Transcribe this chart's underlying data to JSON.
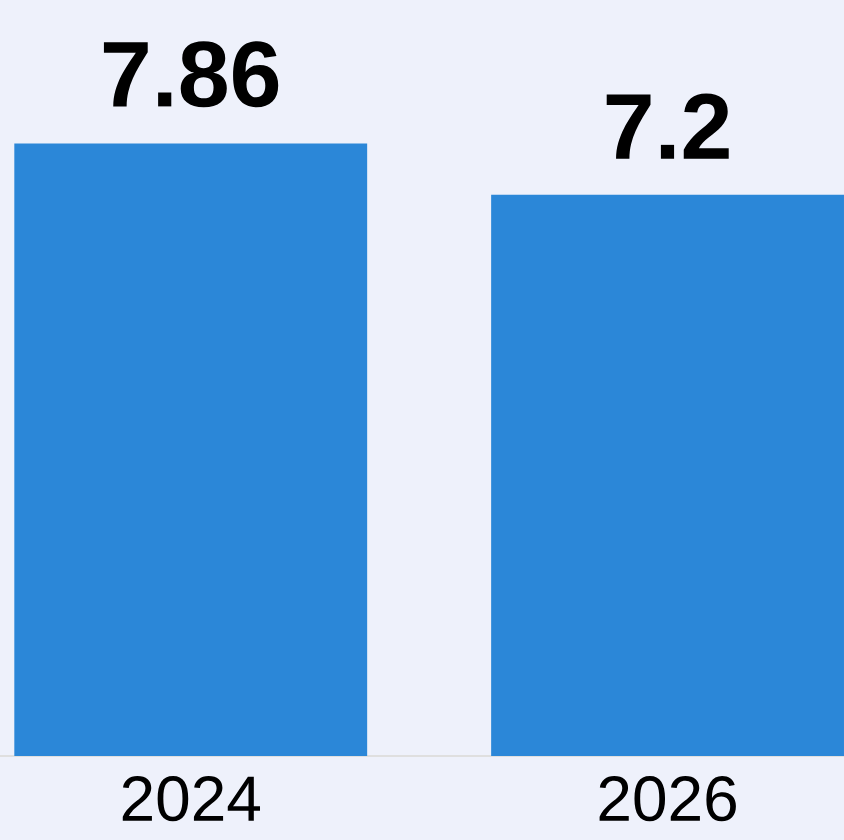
{
  "chart_data": {
    "type": "bar",
    "categories": [
      "2024",
      "2026"
    ],
    "values": [
      7.86,
      7.2
    ],
    "color": "#2b87d8",
    "data_labels": true,
    "ylim": [
      0,
      9.7
    ],
    "tick_labels": "x"
  }
}
